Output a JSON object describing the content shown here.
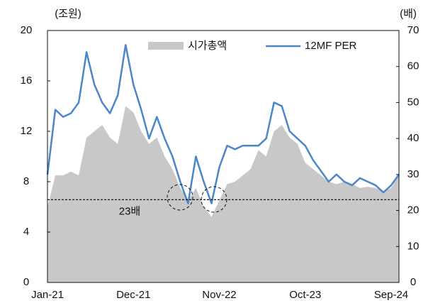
{
  "chart_data": {
    "type": "area_line",
    "y_unit_label": "(조원)",
    "y2_unit_label": "(배)",
    "categories": [
      "Jan-21",
      null,
      null,
      null,
      null,
      null,
      null,
      null,
      null,
      null,
      null,
      "Dec-21",
      null,
      null,
      null,
      null,
      null,
      null,
      null,
      null,
      null,
      null,
      "Nov-22",
      null,
      null,
      null,
      null,
      null,
      null,
      null,
      null,
      null,
      null,
      "Oct-23",
      null,
      null,
      null,
      null,
      null,
      null,
      null,
      null,
      null,
      null,
      "Sep-24",
      null
    ],
    "series": [
      {
        "name": "시가총액",
        "color": "#c8c8c8",
        "kind": "area",
        "axis": "y",
        "values": [
          6.0,
          8.5,
          8.5,
          8.8,
          8.5,
          11.5,
          12.0,
          12.5,
          11.5,
          11.0,
          14.0,
          13.5,
          12.0,
          11.0,
          11.5,
          10.0,
          9.0,
          7.5,
          6.5,
          7.5,
          6.0,
          5.2,
          6.5,
          7.8,
          8.0,
          8.5,
          9.0,
          10.5,
          10.0,
          12.0,
          12.5,
          11.5,
          11.0,
          9.5,
          9.0,
          8.5,
          8.0,
          7.8,
          8.0,
          7.8,
          7.5,
          7.6,
          7.5,
          7.2,
          7.5,
          8.5
        ]
      },
      {
        "name": "12MF PER",
        "color": "#4a86c8",
        "kind": "line",
        "axis": "y2",
        "values": [
          30,
          48,
          46,
          47,
          50,
          64,
          55,
          50,
          47,
          52,
          66,
          55,
          48,
          40,
          46,
          40,
          35,
          28,
          22,
          35,
          28,
          22,
          32,
          38,
          37,
          38,
          38,
          38,
          40,
          50,
          49,
          42,
          40,
          38,
          34,
          31,
          28,
          30,
          28,
          27,
          29,
          28,
          27,
          25,
          27,
          30
        ]
      }
    ],
    "ylim": [
      0,
      20
    ],
    "yticks": [
      0,
      4,
      8,
      12,
      16,
      20
    ],
    "y2lim": [
      0,
      70
    ],
    "y2ticks": [
      0,
      10,
      20,
      30,
      40,
      50,
      60,
      70
    ],
    "reference_line": {
      "value": 23,
      "label": "23배",
      "axis": "y2"
    },
    "legend": "top"
  }
}
